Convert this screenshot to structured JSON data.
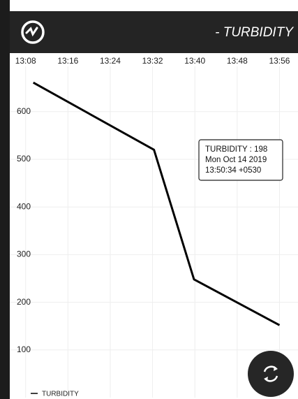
{
  "header": {
    "title": "- TURBIDITY"
  },
  "chart_data": {
    "type": "line",
    "x": [
      "13:09:27",
      "13:32:16",
      "13:39:50",
      "13:56:00"
    ],
    "series": [
      {
        "name": "TURBIDITY",
        "color": "#000000",
        "values": [
          661,
          520,
          248,
          152
        ]
      }
    ],
    "xlim": [
      "13:05:00",
      "13:59:30"
    ],
    "xticks": [
      "13:08",
      "13:16",
      "13:24",
      "13:32",
      "13:40",
      "13:48",
      "13:56"
    ],
    "ylim": [
      0,
      695
    ],
    "yticks": [
      100,
      200,
      300,
      400,
      500,
      600
    ],
    "grid": true
  },
  "tooltip": {
    "lines": [
      "TURBIDITY : 198",
      "Mon Oct 14 2019",
      "13:50:34 +0530"
    ]
  }
}
